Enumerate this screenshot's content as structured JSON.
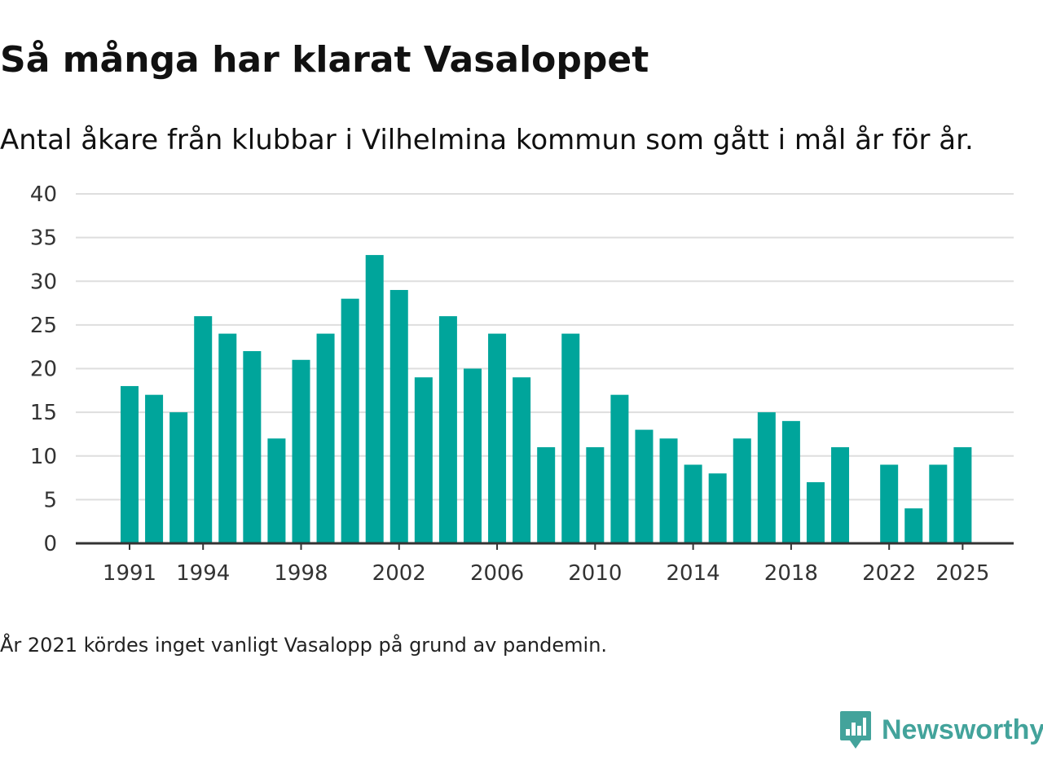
{
  "title": "Så många har klarat Vasaloppet",
  "subtitle": "Antal åkare från klubbar i Vilhelmina kommun som gått i mål år för år.",
  "note": "År 2021 kördes inget vanligt Vasalopp på grund av pandemin.",
  "brand": {
    "name": "Newsworthy",
    "icon": "newsworthy-logo-icon",
    "color": "#43a39b"
  },
  "chart_data": {
    "type": "bar",
    "title": "Så många har klarat Vasaloppet",
    "xlabel": "",
    "ylabel": "",
    "ylim": [
      0,
      40
    ],
    "yticks": [
      0,
      5,
      10,
      15,
      20,
      25,
      30,
      35,
      40
    ],
    "xticks": [
      1991,
      1994,
      1998,
      2002,
      2006,
      2010,
      2014,
      2018,
      2022,
      2025
    ],
    "grid": true,
    "bar_color": "#00a59b",
    "categories": [
      1991,
      1992,
      1993,
      1994,
      1995,
      1996,
      1997,
      1998,
      1999,
      2000,
      2001,
      2002,
      2003,
      2004,
      2005,
      2006,
      2007,
      2008,
      2009,
      2010,
      2011,
      2012,
      2013,
      2014,
      2015,
      2016,
      2017,
      2018,
      2019,
      2020,
      2021,
      2022,
      2023,
      2024,
      2025
    ],
    "values": [
      18,
      17,
      15,
      26,
      24,
      22,
      12,
      21,
      24,
      28,
      33,
      29,
      19,
      26,
      20,
      24,
      19,
      11,
      24,
      11,
      17,
      13,
      12,
      9,
      8,
      12,
      15,
      14,
      7,
      11,
      null,
      9,
      4,
      9,
      11
    ]
  }
}
